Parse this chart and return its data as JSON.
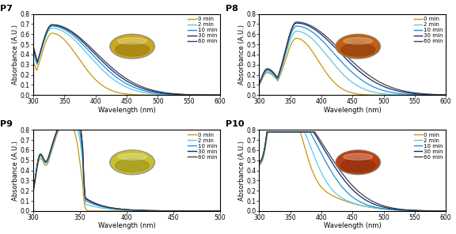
{
  "panels": [
    "P7",
    "P8",
    "P9",
    "P10"
  ],
  "legend_labels": [
    "0 min",
    "2 min",
    "10 min",
    "30 min",
    "60 min"
  ],
  "line_colors": [
    "#c8960c",
    "#5bc8e8",
    "#2090d0",
    "#102880",
    "#404040"
  ],
  "panel_configs": {
    "P7": {
      "xlim": [
        300,
        600
      ],
      "ylim": [
        0,
        0.8
      ],
      "xticks": [
        300,
        350,
        400,
        450,
        500,
        550,
        600
      ],
      "yticks": [
        0.0,
        0.1,
        0.2,
        0.3,
        0.4,
        0.5,
        0.6,
        0.7,
        0.8
      ],
      "img_color": "#c8a820",
      "img_color2": "#a08010"
    },
    "P8": {
      "xlim": [
        300,
        600
      ],
      "ylim": [
        0,
        0.8
      ],
      "xticks": [
        300,
        350,
        400,
        450,
        500,
        550,
        600
      ],
      "yticks": [
        0.0,
        0.1,
        0.2,
        0.3,
        0.4,
        0.5,
        0.6,
        0.7,
        0.8
      ],
      "img_color": "#c06010",
      "img_color2": "#904010"
    },
    "P9": {
      "xlim": [
        300,
        500
      ],
      "ylim": [
        0,
        0.8
      ],
      "xticks": [
        300,
        350,
        400,
        450,
        500
      ],
      "yticks": [
        0.0,
        0.1,
        0.2,
        0.3,
        0.4,
        0.5,
        0.6,
        0.7,
        0.8
      ],
      "img_color": "#c8c030",
      "img_color2": "#a09820"
    },
    "P10": {
      "xlim": [
        300,
        600
      ],
      "ylim": [
        0,
        0.8
      ],
      "xticks": [
        300,
        350,
        400,
        450,
        500,
        550,
        600
      ],
      "yticks": [
        0.0,
        0.1,
        0.2,
        0.3,
        0.4,
        0.5,
        0.6,
        0.7,
        0.8
      ],
      "img_color": "#b84010",
      "img_color2": "#903010"
    }
  }
}
